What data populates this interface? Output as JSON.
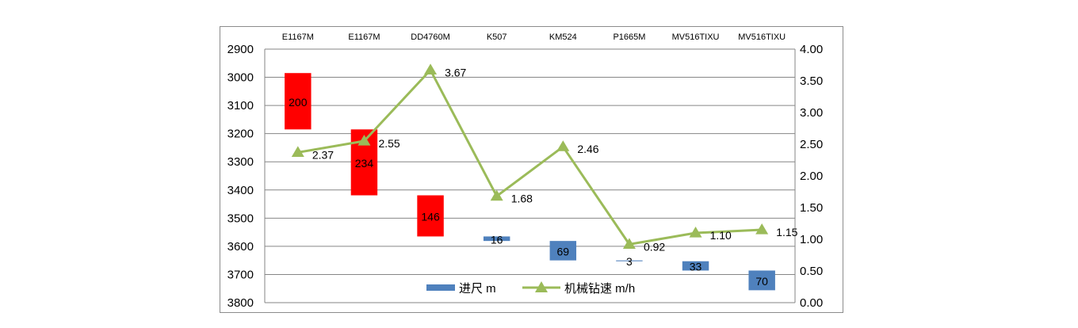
{
  "chart_data": {
    "type": "bar+line",
    "categories": [
      "E1167M",
      "E1167M",
      "DD4760M",
      "K507",
      "KM524",
      "P1665M",
      "MV516TIXU",
      "MV516TIXU"
    ],
    "bars": {
      "name": "进尺 m",
      "color": "#4f81bd",
      "intervals": [
        {
          "from": 2985,
          "to": 3185,
          "label": "200",
          "color": "#ff0000"
        },
        {
          "from": 3185,
          "to": 3419,
          "label": "234",
          "color": "#ff0000"
        },
        {
          "from": 3419,
          "to": 3565,
          "label": "146",
          "color": "#ff0000"
        },
        {
          "from": 3565,
          "to": 3581,
          "label": "16",
          "color": "#4f81bd"
        },
        {
          "from": 3581,
          "to": 3650,
          "label": "69",
          "color": "#4f81bd"
        },
        {
          "from": 3650,
          "to": 3653,
          "label": "3",
          "color": "#4f81bd"
        },
        {
          "from": 3653,
          "to": 3686,
          "label": "33",
          "color": "#4f81bd"
        },
        {
          "from": 3686,
          "to": 3756,
          "label": "70",
          "color": "#4f81bd"
        }
      ]
    },
    "line": {
      "name": "机械钻速 m/h",
      "color": "#9bbb59",
      "values": [
        2.37,
        2.55,
        3.67,
        1.68,
        2.46,
        0.92,
        1.1,
        1.15
      ],
      "labels": [
        "2.37",
        "2.55",
        "3.67",
        "1.68",
        "2.46",
        "0.92",
        "1.10",
        "1.15"
      ]
    },
    "y_left": {
      "min": 2900,
      "max": 3800,
      "reversed": true,
      "ticks": [
        "2900",
        "3000",
        "3100",
        "3200",
        "3300",
        "3400",
        "3500",
        "3600",
        "3700",
        "3800"
      ]
    },
    "y_right": {
      "min": 0,
      "max": 4,
      "ticks": [
        "0.00",
        "0.50",
        "1.00",
        "1.50",
        "2.00",
        "2.50",
        "3.00",
        "3.50",
        "4.00"
      ]
    },
    "grid": true,
    "legend_position": "bottom-center"
  }
}
